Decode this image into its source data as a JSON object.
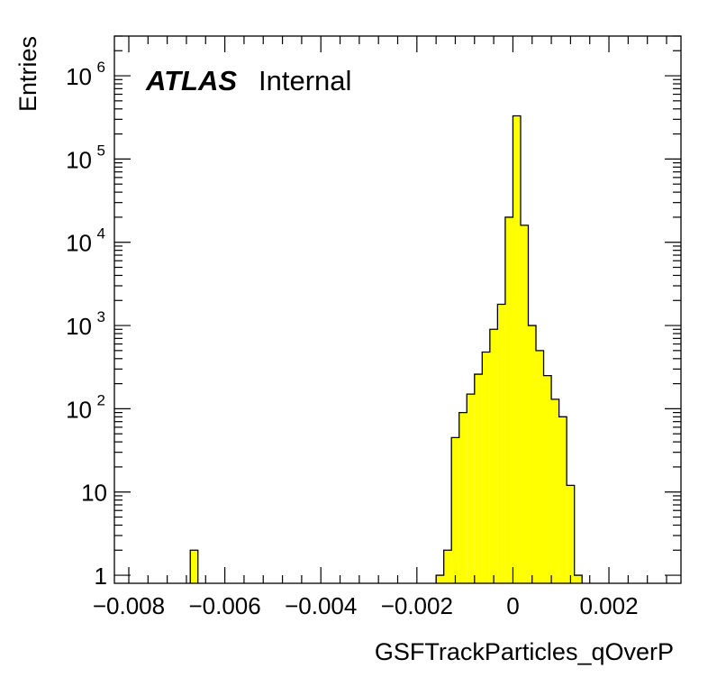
{
  "chart_data": {
    "type": "bar",
    "xlabel": "GSFTrackParticles_qOverP",
    "ylabel": "Entries",
    "label_main": "ATLAS",
    "label_sub": "Internal",
    "xlim": [
      -0.0083,
      0.0035
    ],
    "ylim": [
      0.8,
      3000000
    ],
    "yscale": "log",
    "bin_width": 0.00016,
    "x_ticks": [
      -0.008,
      -0.006,
      -0.004,
      -0.002,
      0,
      0.002
    ],
    "x_tick_labels": [
      "−0.008",
      "−0.006",
      "−0.004",
      "−0.002",
      "0",
      "0.002"
    ],
    "y_tick_labels": [
      {
        "value": 1,
        "base": "1",
        "exp": ""
      },
      {
        "value": 10,
        "base": "10",
        "exp": ""
      },
      {
        "value": 100,
        "base": "10",
        "exp": "2"
      },
      {
        "value": 1000,
        "base": "10",
        "exp": "3"
      },
      {
        "value": 10000,
        "base": "10",
        "exp": "4"
      },
      {
        "value": 100000,
        "base": "10",
        "exp": "5"
      },
      {
        "value": 1000000,
        "base": "10",
        "exp": "6"
      }
    ],
    "bins": [
      {
        "x": -0.00664,
        "y": 2
      },
      {
        "x": -0.00152,
        "y": 1
      },
      {
        "x": -0.00136,
        "y": 2
      },
      {
        "x": -0.0012,
        "y": 45
      },
      {
        "x": -0.00104,
        "y": 90
      },
      {
        "x": -0.00088,
        "y": 150
      },
      {
        "x": -0.00072,
        "y": 260
      },
      {
        "x": -0.00056,
        "y": 480
      },
      {
        "x": -0.0004,
        "y": 900
      },
      {
        "x": -0.00024,
        "y": 1800
      },
      {
        "x": -8e-05,
        "y": 20000
      },
      {
        "x": 8e-05,
        "y": 330000
      },
      {
        "x": 0.00024,
        "y": 16000
      },
      {
        "x": 0.0004,
        "y": 1000
      },
      {
        "x": 0.00056,
        "y": 500
      },
      {
        "x": 0.00072,
        "y": 250
      },
      {
        "x": 0.00088,
        "y": 130
      },
      {
        "x": 0.00104,
        "y": 80
      },
      {
        "x": 0.0012,
        "y": 12
      },
      {
        "x": 0.00136,
        "y": 1
      }
    ],
    "fill_color": "#ffff00",
    "line_color": "#000000",
    "grid": false,
    "legend": "none"
  }
}
